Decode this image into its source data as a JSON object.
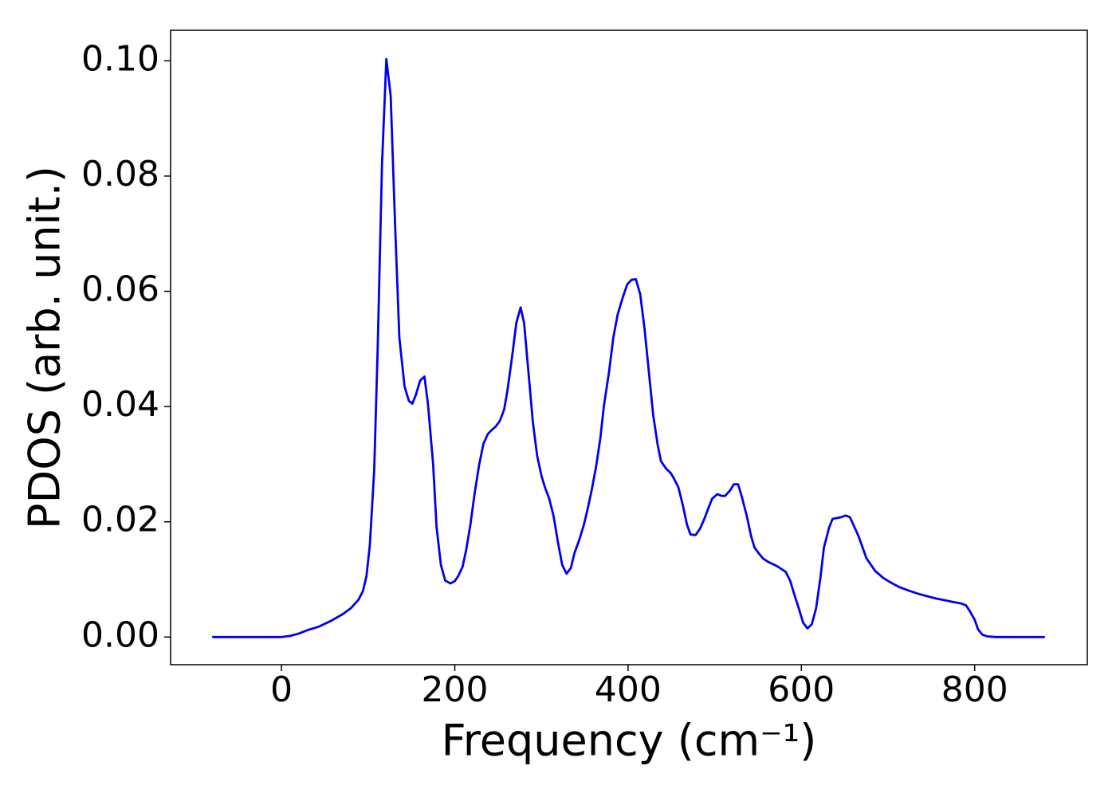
{
  "chart_data": {
    "type": "line",
    "xlabel": "Frequency (cm⁻¹)",
    "ylabel": "PDOS (arb. unit.)",
    "xlim": [
      -128,
      930
    ],
    "ylim": [
      -0.0048,
      0.1053
    ],
    "xticks": [
      0,
      200,
      400,
      600,
      800
    ],
    "yticks": [
      {
        "value": 0,
        "label": "0.00"
      },
      {
        "value": 0.02,
        "label": "0.02"
      },
      {
        "value": 0.04,
        "label": "0.04"
      },
      {
        "value": 0.06,
        "label": "0.06"
      },
      {
        "value": 0.08,
        "label": "0.08"
      },
      {
        "value": 0.1,
        "label": "0.10"
      }
    ],
    "series": [
      {
        "name": "PDOS",
        "color": "#0000ee",
        "x": [
          -80,
          0,
          10,
          20,
          30,
          43,
          57,
          71,
          80,
          89,
          94,
          98,
          102,
          107,
          111,
          116,
          121,
          126,
          131,
          136,
          142,
          147,
          151,
          155,
          160,
          165,
          169,
          175,
          179,
          184,
          189,
          195,
          200,
          204,
          209,
          213,
          218,
          223,
          228,
          233,
          238,
          243,
          247,
          252,
          257,
          261,
          266,
          271,
          276,
          280,
          285,
          290,
          295,
          300,
          304,
          309,
          314,
          319,
          324,
          329,
          334,
          338,
          344,
          349,
          353,
          358,
          363,
          368,
          372,
          378,
          383,
          388,
          394,
          399,
          404,
          409,
          414,
          419,
          424,
          429,
          434,
          438,
          444,
          449,
          453,
          458,
          463,
          468,
          472,
          478,
          483,
          488,
          493,
          497,
          503,
          508,
          512,
          518,
          522,
          527,
          531,
          537,
          542,
          546,
          552,
          556,
          561,
          572,
          582,
          587,
          591,
          597,
          602,
          607,
          612,
          617,
          622,
          626,
          632,
          636,
          646,
          651,
          656,
          660,
          666,
          675,
          685,
          695,
          705,
          714,
          725,
          735,
          745,
          755,
          765,
          775,
          785,
          790,
          794,
          800,
          804,
          809,
          815,
          825,
          881
        ],
        "values": [
          0,
          0,
          0.0002,
          0.0006,
          0.0012,
          0.0018,
          0.0028,
          0.004,
          0.005,
          0.0065,
          0.008,
          0.0105,
          0.016,
          0.029,
          0.05,
          0.082,
          0.1003,
          0.094,
          0.072,
          0.052,
          0.0435,
          0.041,
          0.0405,
          0.042,
          0.0445,
          0.0452,
          0.0405,
          0.03,
          0.019,
          0.0125,
          0.0098,
          0.0093,
          0.0097,
          0.0106,
          0.0122,
          0.015,
          0.0195,
          0.025,
          0.0298,
          0.0335,
          0.0352,
          0.036,
          0.0365,
          0.0375,
          0.0395,
          0.043,
          0.0485,
          0.0545,
          0.0572,
          0.0545,
          0.046,
          0.0375,
          0.0315,
          0.028,
          0.026,
          0.024,
          0.021,
          0.0165,
          0.0125,
          0.011,
          0.012,
          0.0145,
          0.017,
          0.0195,
          0.022,
          0.0255,
          0.0295,
          0.0345,
          0.04,
          0.046,
          0.052,
          0.056,
          0.059,
          0.0612,
          0.062,
          0.0621,
          0.0595,
          0.0535,
          0.046,
          0.0385,
          0.0335,
          0.0305,
          0.0292,
          0.0285,
          0.0275,
          0.026,
          0.023,
          0.0195,
          0.0178,
          0.0177,
          0.0188,
          0.0205,
          0.0225,
          0.024,
          0.0248,
          0.0245,
          0.0245,
          0.0255,
          0.0265,
          0.0265,
          0.0245,
          0.021,
          0.0175,
          0.0155,
          0.0143,
          0.0136,
          0.0131,
          0.0123,
          0.0113,
          0.0098,
          0.0078,
          0.005,
          0.0025,
          0.0015,
          0.0022,
          0.005,
          0.0103,
          0.0155,
          0.019,
          0.0205,
          0.0208,
          0.0211,
          0.0208,
          0.0195,
          0.0175,
          0.0137,
          0.0115,
          0.0102,
          0.0093,
          0.0086,
          0.008,
          0.0075,
          0.0071,
          0.0067,
          0.0064,
          0.0061,
          0.0058,
          0.0055,
          0.0046,
          0.003,
          0.0013,
          0.0004,
          0.0001,
          0,
          0
        ]
      }
    ]
  }
}
